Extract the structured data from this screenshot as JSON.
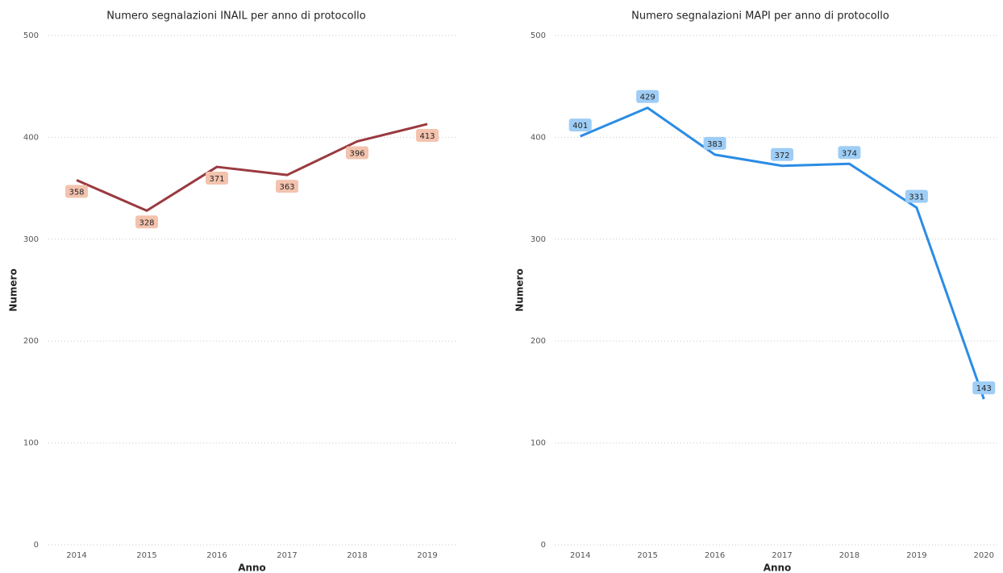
{
  "chart_data": [
    {
      "type": "line",
      "title": "Numero segnalazioni INAIL per anno di protocollo",
      "x_label": "Anno",
      "y_label": "Numero",
      "categories": [
        "2014",
        "2015",
        "2016",
        "2017",
        "2018",
        "2019"
      ],
      "values": [
        358,
        328,
        371,
        363,
        396,
        413
      ],
      "color": "#9a3a40",
      "label_color": "#f3c3ae",
      "ylim": [
        0,
        500
      ],
      "yticks": [
        0,
        100,
        200,
        300,
        400,
        500
      ],
      "grid": true
    },
    {
      "type": "line",
      "title": "Numero segnalazioni MAPI per anno di protocollo",
      "x_label": "Anno",
      "y_label": "Numero",
      "categories": [
        "2014",
        "2015",
        "2016",
        "2017",
        "2018",
        "2019",
        "2020"
      ],
      "values": [
        401,
        429,
        383,
        372,
        374,
        331,
        143
      ],
      "color": "#2b8ce5",
      "label_color": "#9ecdf6",
      "ylim": [
        0,
        500
      ],
      "yticks": [
        0,
        100,
        200,
        300,
        400,
        500
      ],
      "grid": true
    }
  ]
}
